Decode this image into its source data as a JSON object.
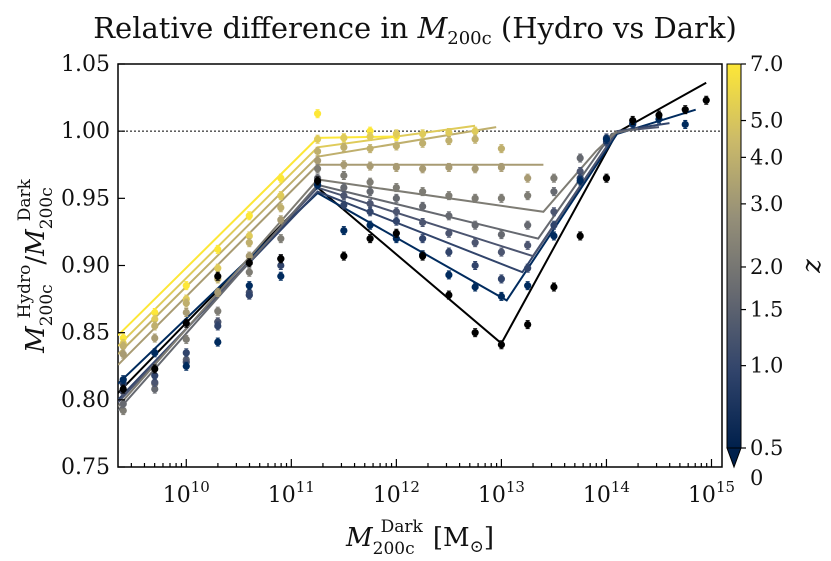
{
  "chart_data": {
    "type": "scatter",
    "title": "Relative difference in M_200c (Hydro vs Dark)",
    "title_parts": {
      "prefix": "Relative difference in ",
      "symbol": "M",
      "sub": "200c",
      "suffix": " (Hydro vs Dark)"
    },
    "xlabel": "M_200c^Dark [M_sun]",
    "xlabel_parts": {
      "symbol": "M",
      "sub": "200c",
      "sup": "Dark",
      "unit": "[M",
      "unit_sub": "⊙",
      "unit_close": "]"
    },
    "ylabel": "M_200c^Hydro / M_200c^Dark",
    "ylabel_parts": {
      "symbol": "M",
      "sub": "200c",
      "sup_num": "Hydro",
      "sup_den": "Dark",
      "slash": "/"
    },
    "xscale": "log",
    "xlim_log10": [
      9.35,
      15.1
    ],
    "ylim": [
      0.75,
      1.05
    ],
    "yticks": [
      0.75,
      0.8,
      0.85,
      0.9,
      0.95,
      1.0,
      1.05
    ],
    "ytick_labels": [
      "0.75",
      "0.80",
      "0.85",
      "0.90",
      "0.95",
      "1.00",
      "1.05"
    ],
    "xtick_exponents": [
      10,
      11,
      12,
      13,
      14,
      15
    ],
    "xtick_base": "10",
    "reference_line": 1.0,
    "colorbar": {
      "label": "z",
      "ticks": [
        7.0,
        5.0,
        4.0,
        3.0,
        2.0,
        1.5,
        1.0,
        0.5,
        0
      ],
      "tick_labels": [
        "7.0",
        "5.0",
        "4.0",
        "3.0",
        "2.0",
        "1.5",
        "1.0",
        "0.5",
        "0"
      ],
      "extend": "min"
    },
    "colors": {
      "cb_stops": [
        "#00204c",
        "#31446b",
        "#666970",
        "#958f78",
        "#cbba69",
        "#fde737"
      ]
    },
    "series": [
      {
        "z": 0.0,
        "color": "#000000",
        "x_log10": [
          9.4,
          9.7,
          10.0,
          10.3,
          10.6,
          10.9,
          11.25,
          11.5,
          11.75,
          12.0,
          12.25,
          12.5,
          12.75,
          13.0,
          13.25,
          13.5,
          13.75,
          14.0,
          14.25,
          14.5,
          14.75,
          14.95
        ],
        "y": [
          0.808,
          0.823,
          0.857,
          0.892,
          0.902,
          0.905,
          0.963,
          0.907,
          0.92,
          0.924,
          0.907,
          0.878,
          0.85,
          0.841,
          0.856,
          0.884,
          0.922,
          0.965,
          1.008,
          1.012,
          1.016,
          1.023
        ],
        "fit_x_log10": [
          9.35,
          11.25,
          13.0,
          14.1,
          14.95
        ],
        "fit_y": [
          0.805,
          0.958,
          0.842,
          0.999,
          1.036
        ]
      },
      {
        "z": 0.5,
        "color": "#002b5e",
        "x_log10": [
          9.4,
          9.7,
          10.0,
          10.3,
          10.6,
          10.9,
          11.25,
          11.5,
          11.75,
          12.0,
          12.25,
          12.5,
          12.75,
          13.0,
          13.25,
          13.5,
          13.75,
          14.0,
          14.25,
          14.5,
          14.75
        ],
        "y": [
          0.815,
          0.835,
          0.825,
          0.843,
          0.885,
          0.892,
          0.96,
          0.926,
          0.93,
          0.92,
          0.908,
          0.893,
          0.884,
          0.877,
          0.885,
          0.922,
          0.963,
          0.994,
          1.006,
          1.009,
          1.005
        ],
        "fit_x_log10": [
          9.35,
          11.25,
          13.05,
          14.1,
          14.85
        ],
        "fit_y": [
          0.812,
          0.954,
          0.874,
          0.998,
          1.016
        ]
      },
      {
        "z": 1.0,
        "color": "#31446b",
        "x_log10": [
          9.4,
          9.7,
          10.0,
          10.3,
          10.6,
          10.9,
          11.25,
          11.5,
          11.75,
          12.0,
          12.25,
          12.5,
          12.75,
          13.0,
          13.25,
          13.5,
          13.75,
          14.0,
          14.25
        ],
        "y": [
          0.812,
          0.818,
          0.835,
          0.855,
          0.878,
          0.9,
          0.96,
          0.945,
          0.94,
          0.933,
          0.92,
          0.91,
          0.9,
          0.89,
          0.898,
          0.93,
          0.965,
          0.992,
          1.005
        ],
        "fit_x_log10": [
          9.35,
          11.25,
          13.2,
          14.1,
          14.6
        ],
        "fit_y": [
          0.8,
          0.955,
          0.895,
          1.0,
          1.006
        ]
      },
      {
        "z": 1.5,
        "color": "#4c5570",
        "x_log10": [
          9.4,
          9.7,
          10.0,
          10.3,
          10.6,
          10.9,
          11.25,
          11.5,
          11.75,
          12.0,
          12.25,
          12.5,
          12.75,
          13.0,
          13.25,
          13.5,
          13.75,
          14.0
        ],
        "y": [
          0.806,
          0.813,
          0.828,
          0.858,
          0.88,
          0.905,
          0.962,
          0.952,
          0.946,
          0.94,
          0.932,
          0.924,
          0.917,
          0.91,
          0.915,
          0.94,
          0.97,
          0.995
        ],
        "fit_x_log10": [
          9.35,
          11.25,
          13.3,
          14.1,
          14.5
        ],
        "fit_y": [
          0.798,
          0.958,
          0.907,
          1.0,
          1.003
        ]
      },
      {
        "z": 2.0,
        "color": "#666970",
        "x_log10": [
          9.4,
          9.7,
          10.0,
          10.3,
          10.6,
          10.9,
          11.25,
          11.5,
          11.75,
          12.0,
          12.25,
          12.5,
          12.75,
          13.0,
          13.25,
          13.5,
          13.75
        ],
        "y": [
          0.797,
          0.808,
          0.83,
          0.858,
          0.878,
          0.905,
          0.965,
          0.958,
          0.955,
          0.95,
          0.944,
          0.937,
          0.93,
          0.923,
          0.93,
          0.955,
          0.98
        ],
        "fit_x_log10": [
          9.35,
          11.25,
          13.35,
          14.05,
          14.3
        ],
        "fit_y": [
          0.792,
          0.96,
          0.92,
          0.998,
          1.002
        ]
      },
      {
        "z": 3.0,
        "color": "#7e7c74",
        "x_log10": [
          9.4,
          9.7,
          10.0,
          10.3,
          10.6,
          10.9,
          11.25,
          11.5,
          11.75,
          12.0,
          12.25,
          12.5,
          12.75,
          13.0,
          13.25,
          13.5
        ],
        "y": [
          0.792,
          0.812,
          0.845,
          0.866,
          0.895,
          0.92,
          0.972,
          0.967,
          0.962,
          0.958,
          0.955,
          0.952,
          0.95,
          0.95,
          0.952,
          0.965
        ],
        "fit_x_log10": [
          9.35,
          11.25,
          13.4,
          13.9,
          14.1
        ],
        "fit_y": [
          0.795,
          0.964,
          0.94,
          0.985,
          1.0
        ]
      },
      {
        "z": 4.0,
        "color": "#a89b73",
        "x_log10": [
          9.4,
          9.7,
          10.0,
          10.3,
          10.6,
          10.9,
          11.25,
          11.5,
          11.75,
          12.0,
          12.25,
          12.5,
          12.75,
          13.0,
          13.25
        ],
        "y": [
          0.834,
          0.846,
          0.865,
          0.88,
          0.907,
          0.934,
          0.978,
          0.975,
          0.974,
          0.973,
          0.972,
          0.973,
          0.972,
          0.973,
          0.965
        ],
        "fit_x_log10": [
          9.35,
          11.25,
          13.4
        ],
        "fit_y": [
          0.826,
          0.975,
          0.975
        ]
      },
      {
        "z": 5.0,
        "color": "#bfaf6d",
        "x_log10": [
          9.4,
          9.7,
          10.0,
          10.3,
          10.6,
          10.9,
          11.25,
          11.5,
          11.75,
          12.0,
          12.25,
          12.5,
          12.75,
          13.0
        ],
        "y": [
          0.84,
          0.855,
          0.872,
          0.89,
          0.917,
          0.943,
          0.985,
          0.988,
          0.987,
          0.989,
          0.991,
          0.993,
          0.994,
          0.987
        ],
        "fit_x_log10": [
          9.35,
          11.25,
          12.95
        ],
        "fit_y": [
          0.834,
          0.981,
          1.003
        ]
      },
      {
        "z": 5.9,
        "color": "#dfcb5a",
        "x_log10": [
          9.4,
          9.7,
          10.0,
          10.3,
          10.6,
          10.9,
          11.25,
          11.5,
          11.75,
          12.0,
          12.25,
          12.5,
          12.75
        ],
        "y": [
          0.842,
          0.86,
          0.875,
          0.898,
          0.922,
          0.952,
          0.994,
          0.995,
          0.996,
          0.998,
          0.998,
          0.999,
          1.0
        ],
        "fit_x_log10": [
          9.35,
          11.25,
          12.75
        ],
        "fit_y": [
          0.84,
          0.988,
          1.004
        ]
      },
      {
        "z": 7.0,
        "color": "#fde737",
        "x_log10": [
          9.4,
          9.7,
          10.0,
          10.3,
          10.6,
          10.9,
          11.25,
          11.5,
          11.75,
          12.0
        ],
        "y": [
          0.846,
          0.865,
          0.885,
          0.912,
          0.937,
          0.965,
          1.013,
          0.995,
          1.0,
          0.996
        ],
        "fit_x_log10": [
          9.35,
          11.25,
          12.0
        ],
        "fit_y": [
          0.848,
          0.995,
          0.996
        ]
      }
    ]
  }
}
